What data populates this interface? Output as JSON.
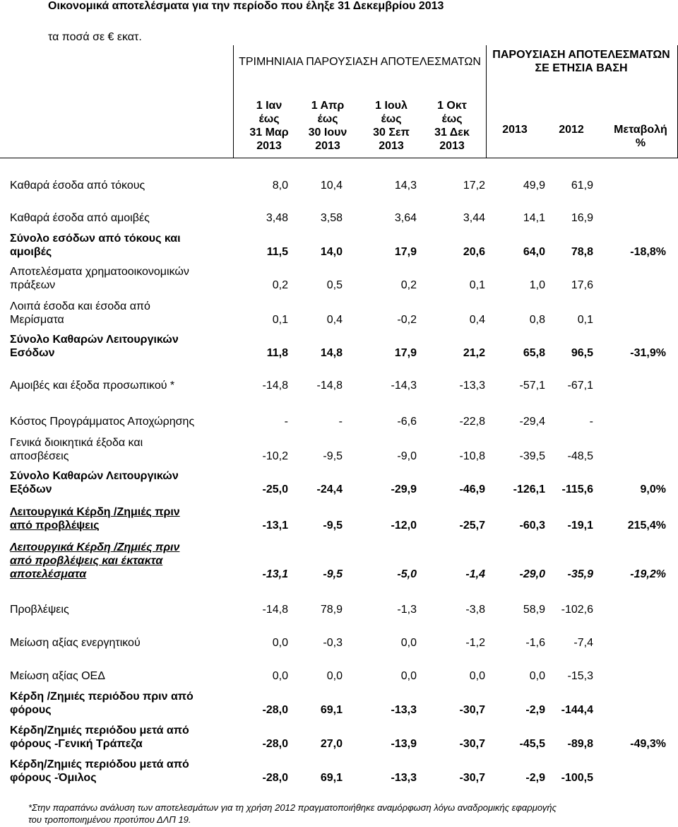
{
  "title": "Οικονομικά αποτελέσματα για την περίοδο που έληξε 31 Δεκεμβρίου 2013",
  "unit": "τα ποσά σε € εκατ.",
  "header": {
    "quarterly_group": "ΤΡΙΜΗΝΙΑΙΑ ΠΑΡΟΥΣΙΑΣΗ ΑΠΟΤΕΛΕΣΜΑΤΩΝ",
    "annual_group": "ΠΑΡΟΥΣΙΑΣΗ ΑΠΟΤΕΛΕΣΜΑΤΩΝ ΣΕ ΕΤΗΣΙΑ ΒΑΣΗ",
    "columns": [
      [
        "1 Ιαν",
        "έως",
        "31 Μαρ",
        "2013"
      ],
      [
        "1 Απρ",
        "έως",
        "30 Ιουν",
        "2013"
      ],
      [
        "1 Ιουλ",
        "έως",
        "30 Σεπ",
        "2013"
      ],
      [
        "1 Οκτ",
        "έως",
        "31 Δεκ",
        "2013"
      ],
      [
        "2013"
      ],
      [
        "2012"
      ],
      [
        "Μεταβολή",
        "%"
      ]
    ]
  },
  "rows": [
    {
      "label": [
        "Καθαρά έσοδα από τόκους"
      ],
      "values": [
        "8,0",
        "10,4",
        "14,3",
        "17,2",
        "49,9",
        "61,9",
        ""
      ],
      "style": ""
    },
    {
      "label": [
        "Καθαρά έσοδα από αμοιβές"
      ],
      "values": [
        "3,48",
        "3,58",
        "3,64",
        "3,44",
        "14,1",
        "16,9",
        ""
      ],
      "style": ""
    },
    {
      "label": [
        "Σύνολο εσόδων από τόκους και",
        "αμοιβές"
      ],
      "values": [
        "11,5",
        "14,0",
        "17,9",
        "20,6",
        "64,0",
        "78,8",
        "-18,8%"
      ],
      "style": "bold"
    },
    {
      "label": [
        "Αποτελέσματα χρηματοοικονομικών",
        "πράξεων"
      ],
      "values": [
        "0,2",
        "0,5",
        "0,2",
        "0,1",
        "1,0",
        "17,6",
        ""
      ],
      "style": ""
    },
    {
      "label": [
        "Λοιπά έσοδα και έσοδα από",
        "Μερίσματα"
      ],
      "values": [
        "0,1",
        "0,4",
        "-0,2",
        "0,4",
        "0,8",
        "0,1",
        ""
      ],
      "style": ""
    },
    {
      "label": [
        "Σύνολο Καθαρών Λειτουργικών",
        "Εσόδων"
      ],
      "values": [
        "11,8",
        "14,8",
        "17,9",
        "21,2",
        "65,8",
        "96,5",
        "-31,9%"
      ],
      "style": "bold"
    },
    {
      "label": [
        "Αμοιβές και έξοδα προσωπικού *"
      ],
      "values": [
        "-14,8",
        "-14,8",
        "-14,3",
        "-13,3",
        "-57,1",
        "-67,1",
        ""
      ],
      "style": ""
    },
    {
      "label": [
        "Κόστος Προγράμματος Αποχώρησης"
      ],
      "values": [
        "-",
        "-",
        "-6,6",
        "-22,8",
        "-29,4",
        "-",
        ""
      ],
      "style": ""
    },
    {
      "label": [
        "Γενικά διοικητικά έξοδα και",
        "αποσβέσεις"
      ],
      "values": [
        "-10,2",
        "-9,5",
        "-9,0",
        "-10,8",
        "-39,5",
        "-48,5",
        ""
      ],
      "style": ""
    },
    {
      "label": [
        "Σύνολο Καθαρών Λειτουργικών",
        "Εξόδων"
      ],
      "values": [
        "-25,0",
        "-24,4",
        "-29,9",
        "-46,9",
        "-126,1",
        "-115,6",
        "9,0%"
      ],
      "style": "bold"
    },
    {
      "label": [
        "Λειτουργικά Κέρδη /Ζημιές  πριν",
        "από προβλέψεις"
      ],
      "values": [
        "-13,1",
        "-9,5",
        "-12,0",
        "-25,7",
        "-60,3",
        "-19,1",
        "215,4%"
      ],
      "style": "bold underline"
    },
    {
      "label": [
        "Λειτουργικά Κέρδη /Ζημιές  πριν",
        "από προβλέψεις και έκτακτα",
        "αποτελέσματα"
      ],
      "values": [
        "-13,1",
        "-9,5",
        "-5,0",
        "-1,4",
        "-29,0",
        "-35,9",
        "-19,2%"
      ],
      "style": "bold italic underline"
    },
    {
      "label": [
        "Προβλέψεις"
      ],
      "values": [
        "-14,8",
        "78,9",
        "-1,3",
        "-3,8",
        "58,9",
        "-102,6",
        ""
      ],
      "style": ""
    },
    {
      "label": [
        "Μείωση αξίας ενεργητικού"
      ],
      "values": [
        "0,0",
        "-0,3",
        "0,0",
        "-1,2",
        "-1,6",
        "-7,4",
        ""
      ],
      "style": ""
    },
    {
      "label": [
        "Μείωση αξίας ΟΕΔ"
      ],
      "values": [
        "0,0",
        "0,0",
        "0,0",
        "0,0",
        "0,0",
        "-15,3",
        ""
      ],
      "style": ""
    },
    {
      "label": [
        "Κέρδη /Ζημιές  περιόδου πριν από",
        "φόρους"
      ],
      "values": [
        "-28,0",
        "69,1",
        "-13,3",
        "-30,7",
        "-2,9",
        "-144,4",
        ""
      ],
      "style": "bold"
    },
    {
      "label": [
        "Κέρδη/Ζημιές περιόδου μετά από",
        "φόρους -Γενική Τράπεζα"
      ],
      "values": [
        "-28,0",
        "27,0",
        "-13,9",
        "-30,7",
        "-45,5",
        "-89,8",
        "-49,3%"
      ],
      "style": "bold"
    },
    {
      "label": [
        "Κέρδη/Ζημιές  περιόδου μετά από",
        "φόρους -Όμιλος"
      ],
      "values": [
        "-28,0",
        "69,1",
        "-13,3",
        "-30,7",
        "-2,9",
        "-100,5",
        ""
      ],
      "style": "bold"
    }
  ],
  "footnote": [
    "*Στην παραπάνω ανάλυση των αποτελεσμάτων για τη χρήση 2012 πραγματοποιήθηκε αναμόρφωση λόγω αναδρομικής εφαρμογής",
    "του τροποποιημένου προτύπου ΔΛΠ 19."
  ]
}
